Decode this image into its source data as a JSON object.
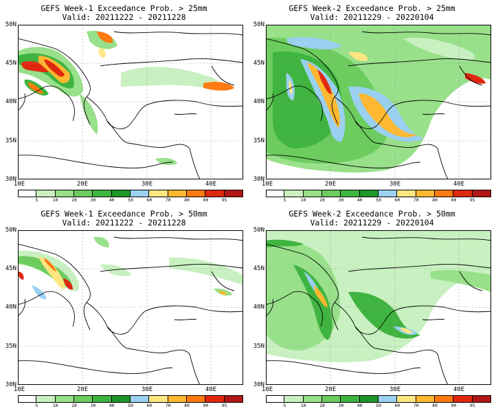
{
  "colorbar": {
    "levels": [
      "5",
      "10",
      "20",
      "30",
      "40",
      "50",
      "60",
      "70",
      "80",
      "90",
      "95"
    ],
    "colors": [
      "#ffffff",
      "#c8f0c0",
      "#98e08a",
      "#6ccc5e",
      "#3fb440",
      "#1e9628",
      "#9ad0f0",
      "#ffe680",
      "#ffb830",
      "#ff7a10",
      "#e02810",
      "#b01818"
    ]
  },
  "axes": {
    "y_labels": [
      "50N",
      "45N",
      "40N",
      "35N",
      "30N"
    ],
    "x_labels": [
      "10E",
      "20E",
      "30E",
      "40E"
    ]
  },
  "panels": [
    {
      "line1": "GEFS Week-1 Exceedance Prob. > 25mm",
      "line2": "Valid: 20211222 - 20211228"
    },
    {
      "line1": "GEFS Week-2 Exceedance Prob. > 25mm",
      "line2": "Valid: 20211229 - 20220104"
    },
    {
      "line1": "GEFS Week-1 Exceedance Prob. > 50mm",
      "line2": "Valid: 20211222 - 20211228"
    },
    {
      "line1": "GEFS Week-2 Exceedance Prob. > 50mm",
      "line2": "Valid: 20211229 - 20220104"
    }
  ]
}
